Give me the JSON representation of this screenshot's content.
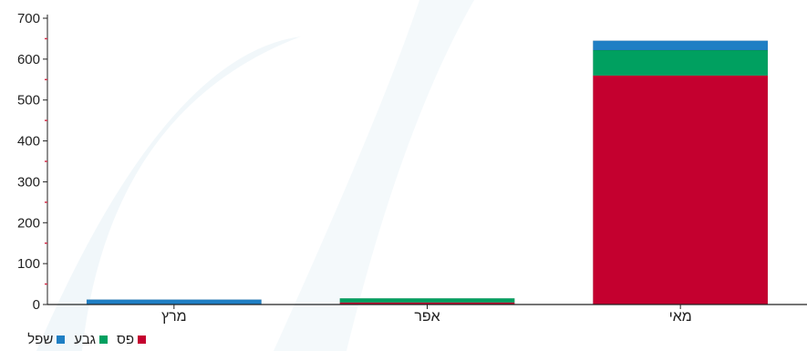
{
  "chart_data": {
    "type": "bar",
    "stacked": true,
    "categories": [
      "מרץ",
      "אפר",
      "מאי"
    ],
    "series": [
      {
        "name": "פס",
        "color": "#c4002f",
        "values": [
          0,
          5,
          560
        ]
      },
      {
        "name": "גבע",
        "color": "#00a060",
        "values": [
          0,
          10,
          62
        ]
      },
      {
        "name": "שפל",
        "color": "#1f7fc4",
        "values": [
          12,
          0,
          23
        ]
      }
    ],
    "y_ticks": [
      0,
      100,
      200,
      300,
      400,
      500,
      600,
      700
    ],
    "ylim": [
      0,
      700
    ],
    "legend_position": "bottom-left",
    "grid": false
  }
}
